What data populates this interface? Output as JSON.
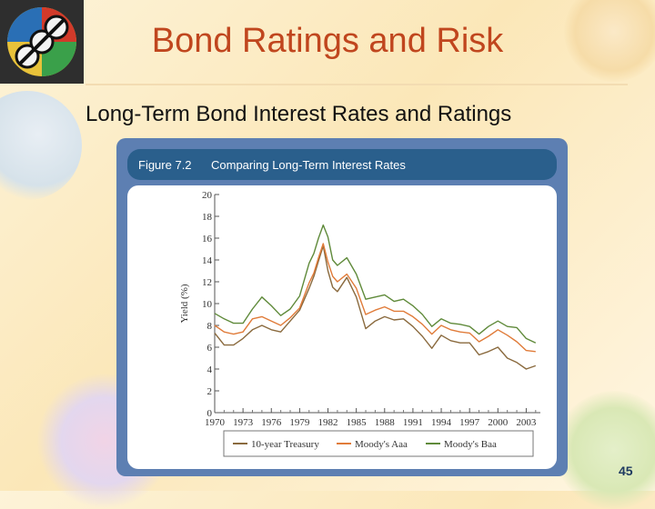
{
  "slide": {
    "title": "Bond Ratings and Risk",
    "subtitle": "Long-Term Bond Interest Rates and Ratings",
    "page_number": "45"
  },
  "figure": {
    "number": "Figure 7.2",
    "title": "Comparing Long-Term Interest Rates"
  },
  "colors": {
    "title": "#c0461e",
    "figure_frame": "#5d7fb2",
    "figure_header": "#2a5f8c",
    "treasury": "#8a6a3e",
    "aaa": "#e07b39",
    "baa": "#5f8a3a"
  },
  "chart_data": {
    "type": "line",
    "title": "",
    "xlabel": "",
    "ylabel": "Yield (%)",
    "xlim": [
      1970,
      2004.5
    ],
    "ylim": [
      0,
      20
    ],
    "x_ticks": [
      1970,
      1973,
      1976,
      1979,
      1982,
      1985,
      1988,
      1991,
      1994,
      1997,
      2000,
      2003
    ],
    "y_ticks": [
      0,
      2,
      4,
      6,
      8,
      10,
      12,
      14,
      16,
      18,
      20
    ],
    "grid": false,
    "legend_position": "bottom",
    "x": [
      1970,
      1971,
      1972,
      1973,
      1974,
      1975,
      1976,
      1977,
      1978,
      1979,
      1980,
      1980.5,
      1981,
      1981.5,
      1982,
      1982.5,
      1983,
      1984,
      1985,
      1986,
      1987,
      1988,
      1989,
      1990,
      1991,
      1992,
      1993,
      1994,
      1995,
      1996,
      1997,
      1998,
      1999,
      2000,
      2001,
      2002,
      2003,
      2004
    ],
    "series": [
      {
        "name": "10-year Treasury",
        "values": [
          7.3,
          6.2,
          6.2,
          6.8,
          7.6,
          8.0,
          7.6,
          7.4,
          8.4,
          9.4,
          11.4,
          12.5,
          13.9,
          15.3,
          13.0,
          11.5,
          11.1,
          12.4,
          10.6,
          7.7,
          8.4,
          8.8,
          8.5,
          8.6,
          7.9,
          7.0,
          5.9,
          7.1,
          6.6,
          6.4,
          6.4,
          5.3,
          5.6,
          6.0,
          5.0,
          4.6,
          4.0,
          4.3
        ]
      },
      {
        "name": "Moody's Aaa",
        "values": [
          8.0,
          7.4,
          7.2,
          7.4,
          8.6,
          8.8,
          8.4,
          8.0,
          8.7,
          9.6,
          11.9,
          12.8,
          14.2,
          15.5,
          13.8,
          12.5,
          12.0,
          12.7,
          11.4,
          9.0,
          9.4,
          9.7,
          9.3,
          9.3,
          8.8,
          8.1,
          7.2,
          8.0,
          7.6,
          7.4,
          7.3,
          6.5,
          7.0,
          7.6,
          7.1,
          6.5,
          5.7,
          5.6
        ]
      },
      {
        "name": "Moody's Baa",
        "values": [
          9.1,
          8.6,
          8.2,
          8.2,
          9.5,
          10.6,
          9.8,
          8.9,
          9.5,
          10.7,
          13.7,
          14.6,
          16.0,
          17.2,
          16.1,
          14.0,
          13.5,
          14.2,
          12.7,
          10.4,
          10.6,
          10.8,
          10.2,
          10.4,
          9.8,
          9.0,
          7.9,
          8.6,
          8.2,
          8.1,
          7.9,
          7.2,
          7.9,
          8.4,
          7.9,
          7.8,
          6.8,
          6.4
        ]
      }
    ]
  }
}
